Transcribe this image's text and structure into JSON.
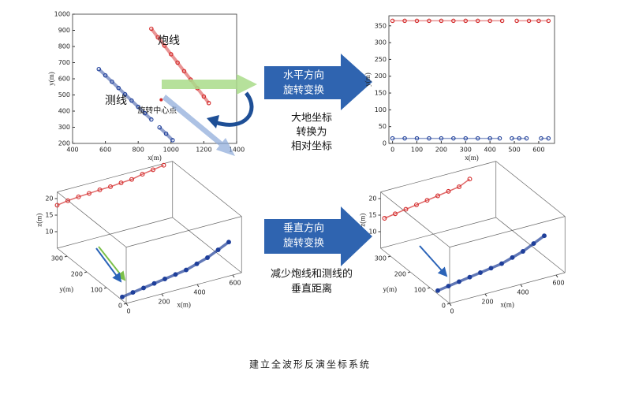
{
  "chart_data": [
    {
      "type": "scatter",
      "xlabel": "x(m)",
      "ylabel": "y(m)",
      "xlim": [
        400,
        1400
      ],
      "ylim": [
        200,
        1000
      ],
      "xticks": [
        400,
        600,
        800,
        1000,
        1200,
        1400
      ],
      "yticks": [
        200,
        300,
        400,
        500,
        600,
        700,
        800,
        900,
        1000
      ],
      "series": [
        {
          "name": "炮线",
          "color": "#d42a2a",
          "x": [
            880,
            920,
            960,
            1000,
            1040,
            1080,
            1120,
            1160,
            1200,
            1230
          ],
          "values": [
            910,
            857,
            805,
            752,
            700,
            647,
            595,
            542,
            490,
            450
          ]
        },
        {
          "name": "测线",
          "color": "#1f3f9a",
          "x": [
            560,
            600,
            640,
            680,
            720,
            760,
            800,
            840,
            880,
            900,
            930,
            970,
            1010
          ],
          "values": [
            660,
            621,
            582,
            543,
            504,
            465,
            426,
            387,
            348,
            null,
            299,
            260,
            220
          ]
        }
      ],
      "center": {
        "label": "旋转中心点",
        "x": 940,
        "y": 470,
        "color": "#d42a2a"
      }
    },
    {
      "type": "scatter",
      "xlabel": "x(m)",
      "ylabel": "y(m)",
      "xlim": [
        -15,
        665
      ],
      "ylim": [
        0,
        380
      ],
      "xticks": [
        0,
        100,
        200,
        300,
        400,
        500,
        600
      ],
      "yticks": [
        0,
        50,
        100,
        150,
        200,
        250,
        300,
        350
      ],
      "series": [
        {
          "name": null,
          "color": "#d42a2a",
          "x": [
            0,
            50,
            100,
            150,
            200,
            250,
            300,
            350,
            400,
            450,
            480,
            510,
            560,
            600,
            640
          ],
          "values": [
            365,
            365,
            365,
            365,
            365,
            365,
            365,
            365,
            365,
            365,
            null,
            365,
            365,
            365,
            365
          ]
        },
        {
          "name": null,
          "color": "#1f3f9a",
          "x": [
            0,
            50,
            100,
            150,
            200,
            250,
            300,
            350,
            400,
            440,
            460,
            490,
            520,
            550,
            580,
            610,
            640
          ],
          "values": [
            15,
            15,
            15,
            15,
            15,
            15,
            15,
            15,
            15,
            15,
            null,
            15,
            15,
            15,
            null,
            15,
            15
          ]
        }
      ]
    },
    {
      "type": "scatter3d",
      "xlabel": "x(m)",
      "ylabel": "y(m)",
      "zlabel": "z(m)",
      "xlim": [
        0,
        650
      ],
      "ylim": [
        0,
        350
      ],
      "zlim": [
        5,
        22
      ],
      "xticks": [
        0,
        200,
        400,
        600
      ],
      "yticks": [
        0,
        100,
        200,
        300
      ],
      "zticks": [
        10,
        15,
        20
      ],
      "series": [
        {
          "name": null,
          "color": "#d42a2a",
          "x": [
            0,
            60,
            120,
            180,
            240,
            300,
            360,
            420,
            480,
            540,
            600
          ],
          "y": [
            350,
            350,
            350,
            350,
            350,
            350,
            350,
            350,
            350,
            350,
            350
          ],
          "values": [
            18,
            18.5,
            18.8,
            19,
            19.2,
            19.3,
            19.6,
            19.8,
            20.5,
            21,
            21.5
          ]
        },
        {
          "name": null,
          "color": "#1f3f9a",
          "x": [
            0,
            60,
            120,
            180,
            240,
            300,
            360,
            420,
            480,
            540,
            600
          ],
          "y": [
            20,
            20,
            20,
            20,
            20,
            20,
            20,
            20,
            20,
            20,
            20
          ],
          "values": [
            6,
            6.5,
            7,
            7.5,
            8,
            8.5,
            9,
            10,
            11,
            12.5,
            14
          ]
        }
      ]
    },
    {
      "type": "scatter3d",
      "xlabel": "x(m)",
      "ylabel": "y(m)",
      "zlabel": "z(m)",
      "xlim": [
        0,
        650
      ],
      "ylim": [
        0,
        350
      ],
      "zlim": [
        5,
        22
      ],
      "xticks": [
        0,
        200,
        400,
        600
      ],
      "yticks": [
        0,
        100,
        200,
        300
      ],
      "zticks": [
        10,
        15,
        20
      ],
      "series": [
        {
          "name": null,
          "color": "#d42a2a",
          "x": [
            0,
            60,
            120,
            180,
            240,
            300,
            360,
            420,
            480
          ],
          "y": [
            330,
            330,
            330,
            330,
            330,
            330,
            330,
            330,
            330
          ],
          "values": [
            15,
            15.5,
            16,
            16.5,
            17,
            17.5,
            18,
            18.5,
            20
          ]
        },
        {
          "name": null,
          "color": "#1f3f9a",
          "x": [
            0,
            60,
            120,
            180,
            240,
            300,
            360,
            420,
            480,
            540,
            600
          ],
          "y": [
            60,
            60,
            60,
            60,
            60,
            60,
            60,
            60,
            60,
            60,
            60
          ],
          "values": [
            6,
            6.5,
            7,
            7.5,
            8,
            8.5,
            9,
            10,
            11,
            12.5,
            14
          ]
        }
      ]
    }
  ],
  "arrows": [
    {
      "lines": [
        "水平方向",
        "旋转变换"
      ]
    },
    {
      "lines": [
        "垂直方向",
        "旋转变换"
      ]
    }
  ],
  "notes": [
    [
      "大地坐标",
      "转换为",
      "相对坐标"
    ],
    [
      "减少炮线和测线的",
      "垂直距离"
    ]
  ],
  "caption": "建立全波形反演坐标系统"
}
